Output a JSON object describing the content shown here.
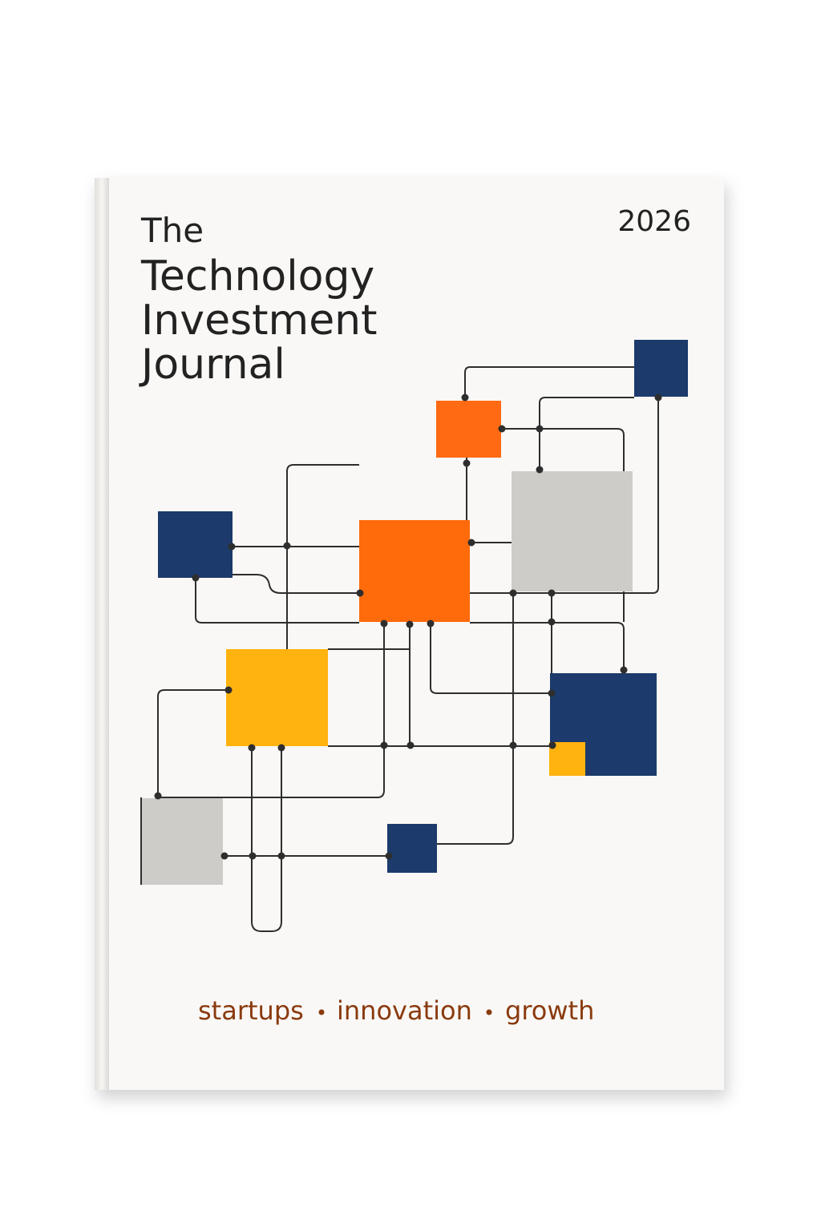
{
  "cover": {
    "title_lines": [
      "The",
      "Technology",
      "Investment",
      "Journal"
    ],
    "year": "2026",
    "tagline": [
      "startups",
      "innovation",
      "growth"
    ]
  }
}
